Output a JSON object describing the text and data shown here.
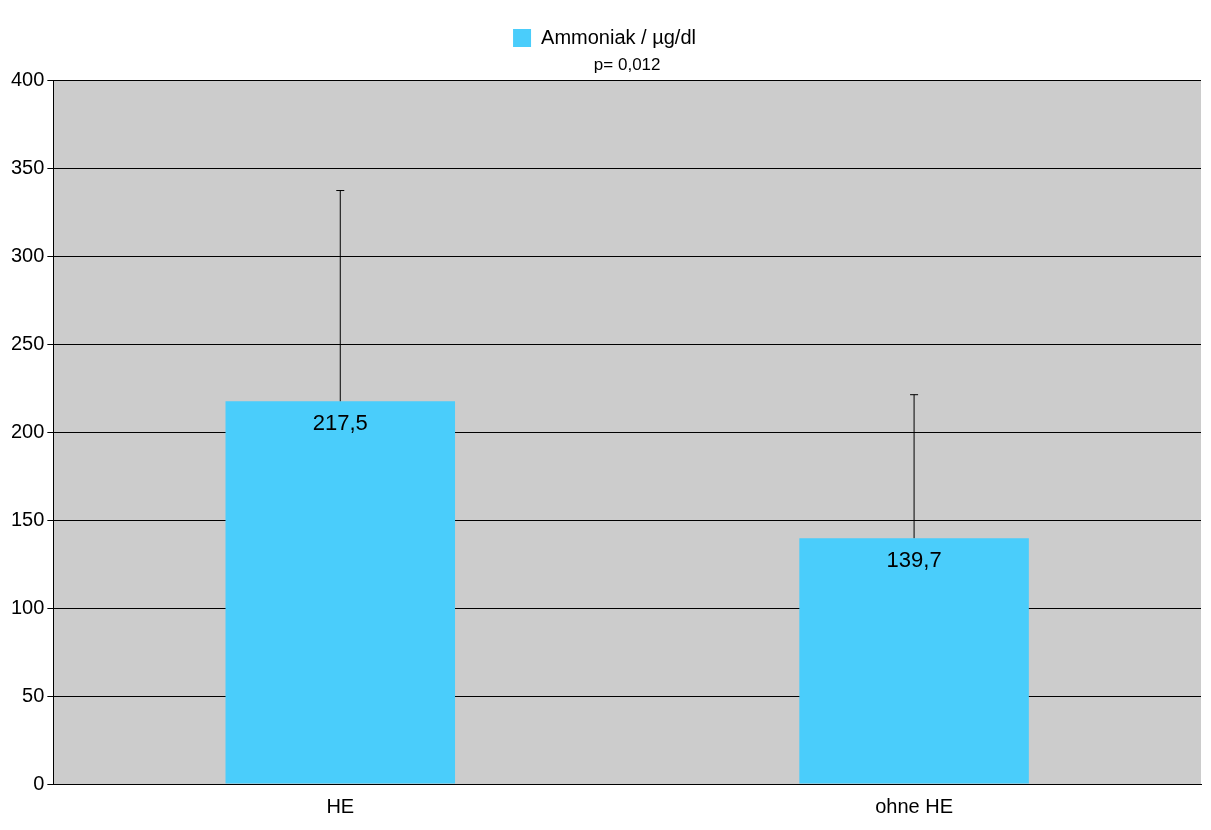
{
  "chart_data": {
    "type": "bar",
    "categories": [
      "HE",
      "ohne HE"
    ],
    "series": [
      {
        "name": "Ammoniak / µg/dl",
        "color": "#4acdfb",
        "values": [
          217.5,
          139.7
        ],
        "errors": [
          [
            217.5,
            337.2
          ],
          [
            139.7,
            221.2
          ]
        ],
        "value_labels": [
          "217,5",
          "139,7"
        ]
      }
    ],
    "ylim": [
      0,
      400
    ],
    "yticks": [
      0,
      50,
      100,
      150,
      200,
      250,
      300,
      350,
      400
    ],
    "grid": "y",
    "legend": "top",
    "annotations": [
      "p= 0,012"
    ]
  }
}
